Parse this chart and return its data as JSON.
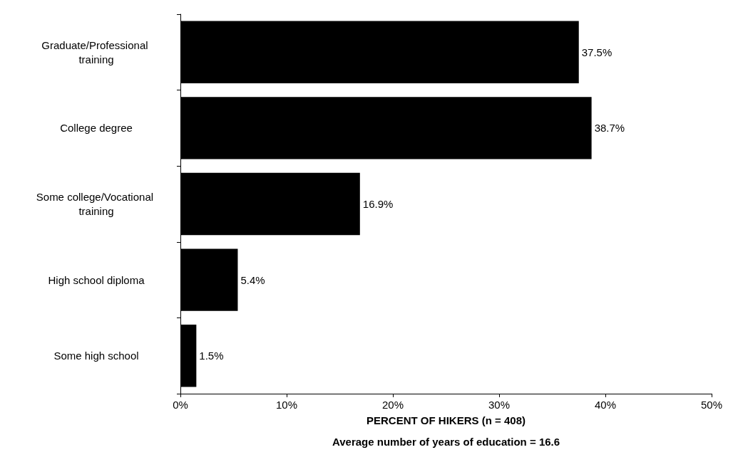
{
  "chart_data": {
    "type": "bar",
    "orientation": "horizontal",
    "categories": [
      "Graduate/Professional training",
      "College degree",
      "Some college/Vocational training",
      "High school diploma",
      "Some high school"
    ],
    "values": [
      37.5,
      38.7,
      16.9,
      5.4,
      1.5
    ],
    "value_labels": [
      "37.5%",
      "38.7%",
      "16.9%",
      "5.4%",
      "1.5%"
    ],
    "color": "#000000",
    "xlim": [
      0,
      50
    ],
    "xticks": [
      {
        "value": 0,
        "label": "0%"
      },
      {
        "value": 10,
        "label": "10%"
      },
      {
        "value": 20,
        "label": "20%"
      },
      {
        "value": 30,
        "label": "30%"
      },
      {
        "value": 40,
        "label": "40%"
      },
      {
        "value": 50,
        "label": "50%"
      }
    ],
    "xlabel": "PERCENT OF HIKERS (n = 408)",
    "annotations": [
      "Average number of years of education = 16.6"
    ],
    "grid": false
  }
}
